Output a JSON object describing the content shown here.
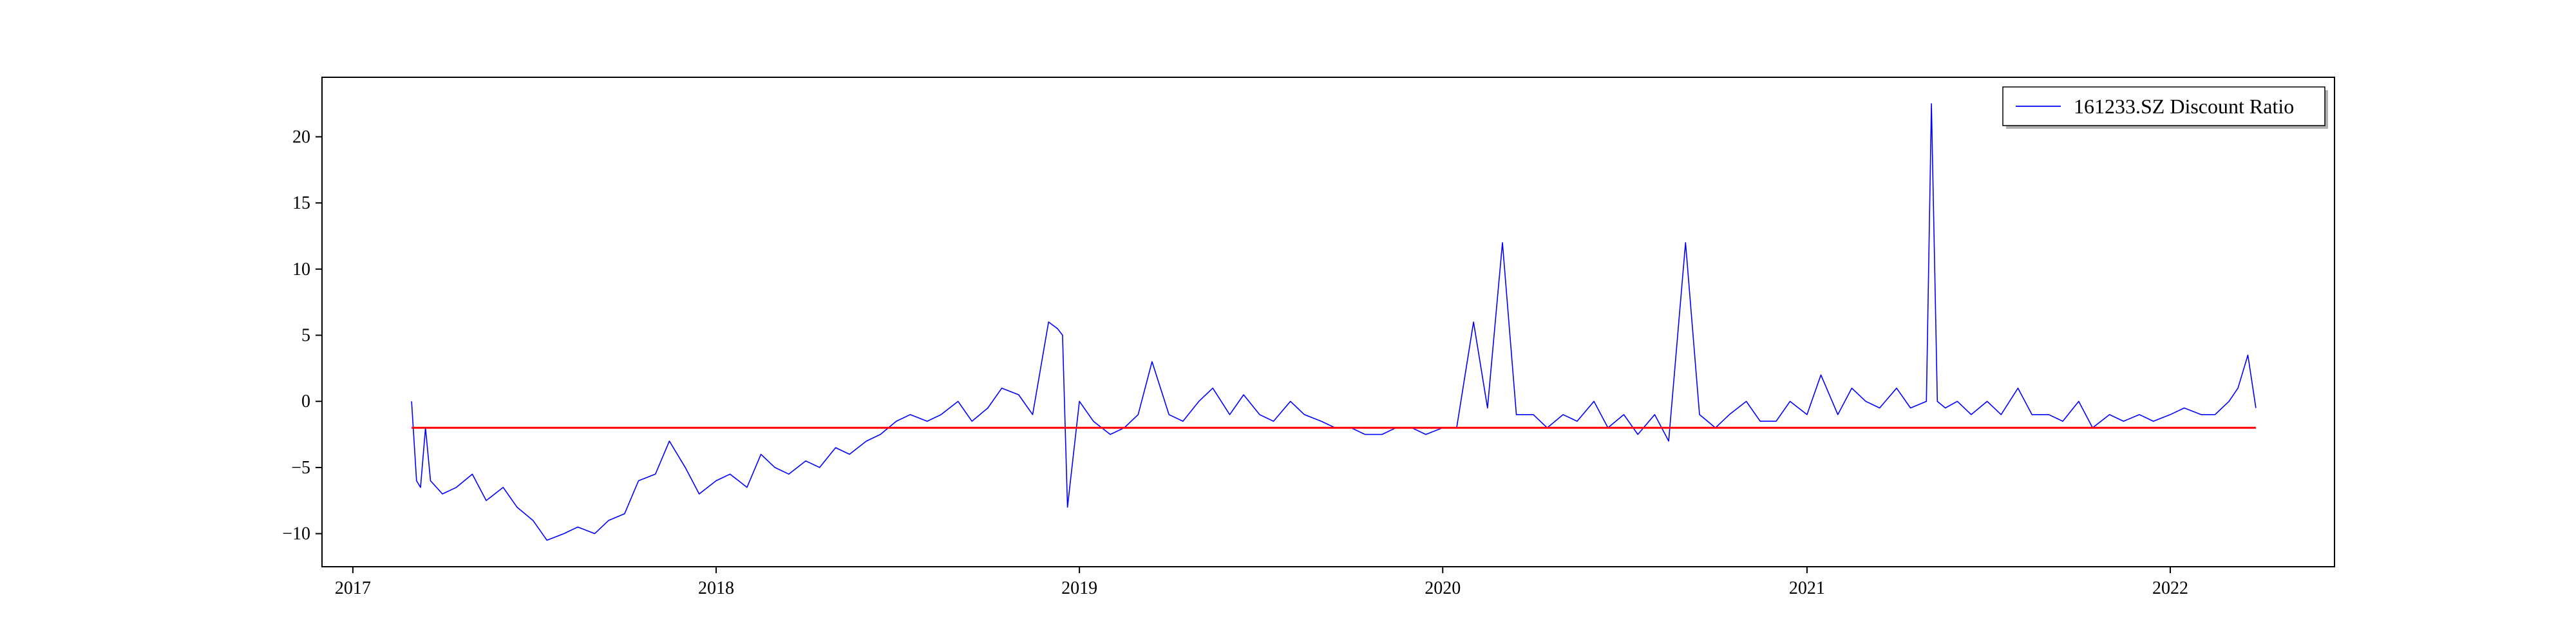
{
  "chart_data": {
    "type": "line",
    "title": "",
    "xlabel": "",
    "ylabel": "",
    "x_axis": {
      "type": "date",
      "range": [
        "2016-12-01",
        "2022-06-15"
      ],
      "ticks": [
        {
          "date": "2017-01-01",
          "label": "2017"
        },
        {
          "date": "2018-01-01",
          "label": "2018"
        },
        {
          "date": "2019-01-01",
          "label": "2019"
        },
        {
          "date": "2020-01-01",
          "label": "2020"
        },
        {
          "date": "2021-01-01",
          "label": "2021"
        },
        {
          "date": "2022-01-01",
          "label": "2022"
        }
      ]
    },
    "y_axis": {
      "range": [
        -12.5,
        24.5
      ],
      "ticks": [
        {
          "value": -10,
          "label": "−10"
        },
        {
          "value": -5,
          "label": "−5"
        },
        {
          "value": 0,
          "label": "0"
        },
        {
          "value": 5,
          "label": "5"
        },
        {
          "value": 10,
          "label": "10"
        },
        {
          "value": 15,
          "label": "15"
        },
        {
          "value": 20,
          "label": "20"
        }
      ]
    },
    "grid": false,
    "legend": {
      "position": "top-right"
    },
    "series": [
      {
        "name": "161233.SZ Discount Ratio",
        "color": "#0000ff",
        "x": [
          "2017-03-01",
          "2017-03-06",
          "2017-03-10",
          "2017-03-15",
          "2017-03-20",
          "2017-04-01",
          "2017-04-15",
          "2017-05-01",
          "2017-05-15",
          "2017-06-01",
          "2017-06-15",
          "2017-07-01",
          "2017-07-15",
          "2017-08-01",
          "2017-08-15",
          "2017-09-01",
          "2017-09-15",
          "2017-10-01",
          "2017-10-15",
          "2017-11-01",
          "2017-11-15",
          "2017-12-01",
          "2017-12-15",
          "2018-01-01",
          "2018-01-15",
          "2018-02-01",
          "2018-02-15",
          "2018-03-01",
          "2018-03-15",
          "2018-04-01",
          "2018-04-15",
          "2018-05-01",
          "2018-05-15",
          "2018-06-01",
          "2018-06-15",
          "2018-07-01",
          "2018-07-15",
          "2018-08-01",
          "2018-08-15",
          "2018-09-01",
          "2018-09-15",
          "2018-10-01",
          "2018-10-15",
          "2018-11-01",
          "2018-11-15",
          "2018-12-01",
          "2018-12-10",
          "2018-12-15",
          "2018-12-20",
          "2019-01-01",
          "2019-01-15",
          "2019-02-01",
          "2019-02-15",
          "2019-03-01",
          "2019-03-15",
          "2019-04-01",
          "2019-04-15",
          "2019-05-01",
          "2019-05-15",
          "2019-06-01",
          "2019-06-15",
          "2019-07-01",
          "2019-07-15",
          "2019-08-01",
          "2019-08-15",
          "2019-09-01",
          "2019-09-15",
          "2019-10-01",
          "2019-10-15",
          "2019-11-01",
          "2019-11-15",
          "2019-12-01",
          "2019-12-15",
          "2020-01-01",
          "2020-01-15",
          "2020-02-01",
          "2020-02-15",
          "2020-03-01",
          "2020-03-15",
          "2020-04-01",
          "2020-04-15",
          "2020-05-01",
          "2020-05-15",
          "2020-06-01",
          "2020-06-15",
          "2020-07-01",
          "2020-07-15",
          "2020-08-01",
          "2020-08-15",
          "2020-09-01",
          "2020-09-15",
          "2020-10-01",
          "2020-10-15",
          "2020-11-01",
          "2020-11-15",
          "2020-12-01",
          "2020-12-15",
          "2021-01-01",
          "2021-01-15",
          "2021-02-01",
          "2021-02-15",
          "2021-03-01",
          "2021-03-15",
          "2021-04-01",
          "2021-04-15",
          "2021-05-01",
          "2021-05-06",
          "2021-05-12",
          "2021-05-20",
          "2021-06-01",
          "2021-06-15",
          "2021-07-01",
          "2021-07-15",
          "2021-08-01",
          "2021-08-15",
          "2021-09-01",
          "2021-09-15",
          "2021-10-01",
          "2021-10-15",
          "2021-11-01",
          "2021-11-15",
          "2021-12-01",
          "2021-12-15",
          "2022-01-01",
          "2022-01-15",
          "2022-02-01",
          "2022-02-15",
          "2022-03-01",
          "2022-03-10",
          "2022-03-20",
          "2022-03-28"
        ],
        "y": [
          0,
          -6,
          -6.5,
          -2,
          -6,
          -7,
          -6.5,
          -5.5,
          -7.5,
          -6.5,
          -8,
          -9,
          -10.5,
          -10,
          -9.5,
          -10,
          -9,
          -8.5,
          -6,
          -5.5,
          -3,
          -5,
          -7,
          -6,
          -5.5,
          -6.5,
          -4,
          -5,
          -5.5,
          -4.5,
          -5,
          -3.5,
          -4,
          -3,
          -2.5,
          -1.5,
          -1,
          -1.5,
          -1,
          0,
          -1.5,
          -0.5,
          1,
          0.5,
          -1,
          6,
          5.5,
          5,
          -8,
          0,
          -1.5,
          -2.5,
          -2,
          -1,
          3,
          -1,
          -1.5,
          0,
          1,
          -1,
          0.5,
          -1,
          -1.5,
          0,
          -1,
          -1.5,
          -2,
          -2,
          -2.5,
          -2.5,
          -2,
          -2,
          -2.5,
          -2,
          -2,
          6,
          -0.5,
          12,
          -1,
          -1,
          -2,
          -1,
          -1.5,
          0,
          -2,
          -1,
          -2.5,
          -1,
          -3,
          12,
          -1,
          -2,
          -1,
          0,
          -1.5,
          -1.5,
          0,
          -1,
          2,
          -1,
          1,
          0,
          -0.5,
          1,
          -0.5,
          0,
          22.5,
          0,
          -0.5,
          0,
          -1,
          0,
          -1,
          1,
          -1,
          -1,
          -1.5,
          0,
          -2,
          -1,
          -1.5,
          -1,
          -1.5,
          -1,
          -0.5,
          -1,
          -1,
          0,
          1,
          3.5,
          -0.5
        ]
      },
      {
        "name": "",
        "color": "#ff0000",
        "x": [
          "2017-03-01",
          "2022-03-28"
        ],
        "y": [
          -2,
          -2
        ]
      }
    ]
  }
}
